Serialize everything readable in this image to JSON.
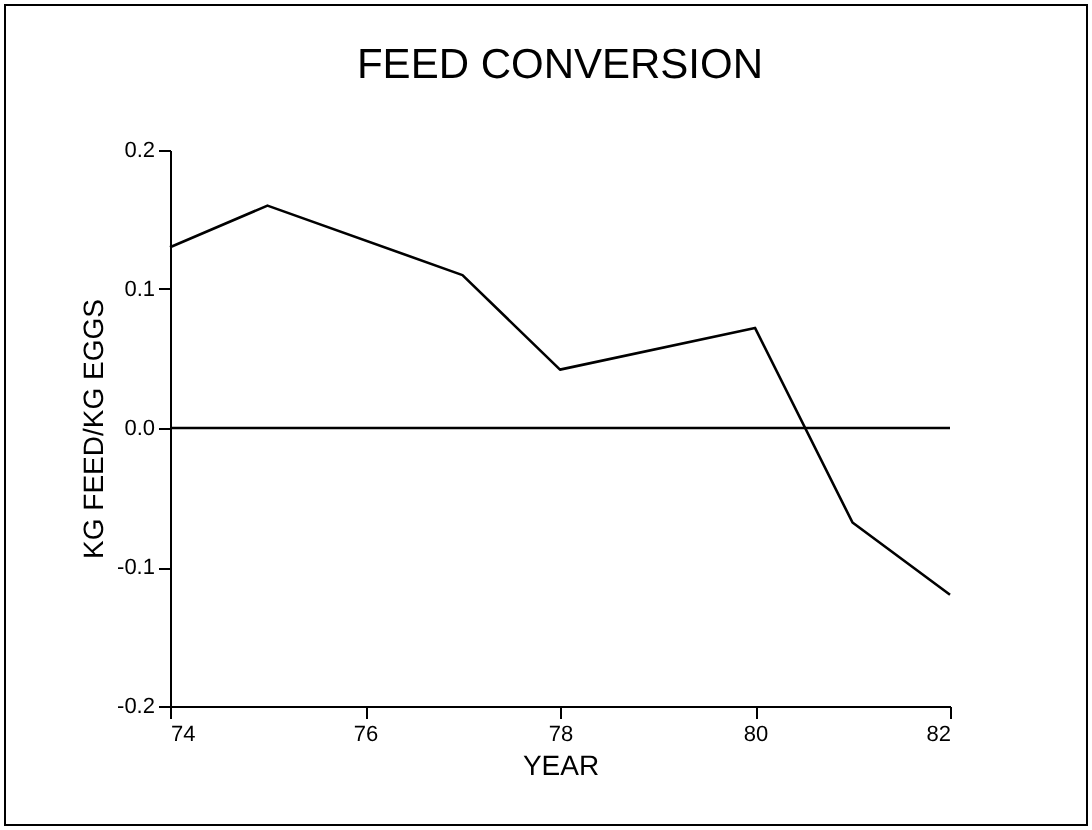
{
  "chart_data": {
    "type": "line",
    "title": "FEED CONVERSION",
    "xlabel": "YEAR",
    "ylabel": "KG FEED/KG EGGS",
    "x": [
      74,
      75,
      77,
      78,
      80,
      81,
      82
    ],
    "series": [
      {
        "color": "#000000",
        "values": [
          0.13,
          0.16,
          0.11,
          0.042,
          0.072,
          -0.068,
          -0.12
        ]
      }
    ],
    "xlim": [
      74,
      82
    ],
    "xticks": [
      74,
      76,
      78,
      80,
      82
    ],
    "ylim": [
      -0.2,
      0.2
    ],
    "yticks": [
      {
        "value": -0.2,
        "label": "-0.2"
      },
      {
        "value": -0.1,
        "label": "-0.1"
      },
      {
        "value": 0,
        "label": "0.0"
      },
      0.1,
      0.2
    ],
    "ref_lines": [
      {
        "axis": "y",
        "value": 0,
        "color": "#000000"
      }
    ],
    "grid": false
  }
}
